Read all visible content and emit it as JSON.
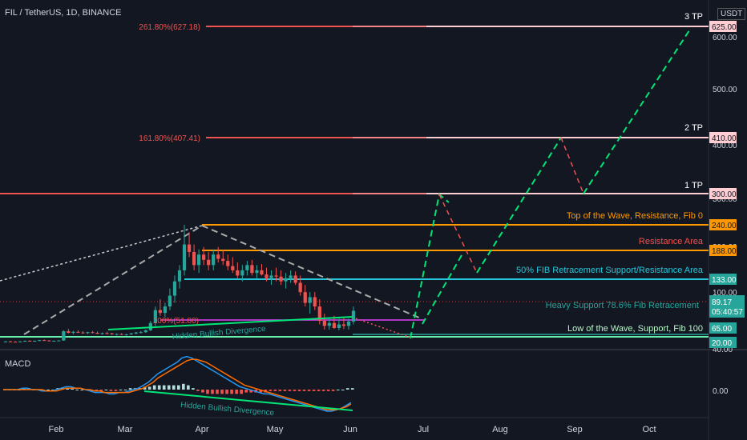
{
  "header": {
    "symbol": "FIL / TetherUS, 1D, BINANCE",
    "currency": "USDT"
  },
  "macd_label": "MACD",
  "colors": {
    "background": "#131722",
    "red": "#ef5350",
    "green": "#26a69a",
    "gridText": "#d1d4dc",
    "orange": "#ff9800",
    "teal": "#26a69a",
    "lime": "#00e676",
    "pink": "#ffcdd2",
    "magenta": "#e040fb",
    "macdBlue": "#2196f3",
    "signalOrange": "#ff6d00"
  },
  "chart_data": {
    "type": "candlestick",
    "x_labels": [
      "Feb",
      "Mar",
      "Apr",
      "May",
      "Jun",
      "Jul",
      "Aug",
      "Sep",
      "Oct"
    ],
    "y_ticks": [
      "600.00",
      "500.00",
      "400.00",
      "300.00",
      "200.00",
      "100.00",
      "40.00"
    ],
    "macd_ticks": [
      "0.00"
    ],
    "price_axis_tags": [
      {
        "value": "625.00",
        "color": "#ffcdd2",
        "textColor": "#131722"
      },
      {
        "value": "410.00",
        "color": "#ffcdd2",
        "textColor": "#131722"
      },
      {
        "value": "300.00",
        "color": "#ffcdd2",
        "textColor": "#131722"
      },
      {
        "value": "240.00",
        "color": "#ff9800",
        "textColor": "#131722"
      },
      {
        "value": "188.00",
        "color": "#ff9800",
        "textColor": "#131722"
      },
      {
        "value": "133.00",
        "color": "#26a69a",
        "textColor": "#ffffff"
      },
      {
        "value": "65.00",
        "color": "#26a69a",
        "textColor": "#ffffff"
      },
      {
        "value": "20.00",
        "color": "#26a69a",
        "textColor": "#ffffff"
      }
    ],
    "last_price": {
      "value": "89.17",
      "countdown": "05:40:57"
    },
    "fib_labels": [
      {
        "text": "261.80%(627.18)",
        "value": 627.18
      },
      {
        "text": "161.80%(407.41)",
        "value": 407.41
      },
      {
        "text": "100%(51.80)",
        "value": 51.8
      }
    ],
    "levels": [
      {
        "value": 625,
        "text": "3 TP",
        "color": "#ffcdd2"
      },
      {
        "value": 410,
        "text": "2 TP",
        "color": "#ffcdd2"
      },
      {
        "value": 300,
        "text": "1 TP",
        "color": "#ef5350"
      },
      {
        "value": 240,
        "text": "Top of the Wave, Resistance, Fib 0",
        "color": "#ff9800"
      },
      {
        "value": 188,
        "text": "Resistance Area",
        "color": "#ef5350"
      },
      {
        "value": 133,
        "text": "50% FIB Retracement Support/Resistance Area",
        "color": "#26c6da"
      },
      {
        "value": 65,
        "text": "Heavy Support 78.6% Fib Retracement",
        "color": "#26a69a"
      },
      {
        "value": 20,
        "text": "Low of the Wave, Support, Fib 100",
        "color": "#b9f6ca"
      }
    ],
    "annotations": [
      "Hidden Bullish Divergence",
      "Hidden Bullish Divergence"
    ],
    "candles": [
      [
        22,
        24,
        20,
        23
      ],
      [
        23,
        25,
        21,
        22
      ],
      [
        22,
        24,
        20,
        21
      ],
      [
        21,
        24,
        20,
        23
      ],
      [
        23,
        26,
        22,
        25
      ],
      [
        25,
        27,
        23,
        24
      ],
      [
        24,
        26,
        22,
        25
      ],
      [
        25,
        28,
        24,
        27
      ],
      [
        27,
        29,
        25,
        26
      ],
      [
        26,
        27,
        23,
        24
      ],
      [
        24,
        26,
        23,
        25
      ],
      [
        25,
        27,
        24,
        26
      ],
      [
        26,
        58,
        25,
        55
      ],
      [
        55,
        62,
        48,
        50
      ],
      [
        50,
        56,
        45,
        53
      ],
      [
        53,
        58,
        49,
        51
      ],
      [
        51,
        55,
        47,
        49
      ],
      [
        49,
        53,
        46,
        52
      ],
      [
        52,
        56,
        48,
        50
      ],
      [
        50,
        54,
        46,
        47
      ],
      [
        47,
        51,
        44,
        49
      ],
      [
        49,
        53,
        45,
        48
      ],
      [
        48,
        50,
        44,
        45
      ],
      [
        45,
        48,
        42,
        46
      ],
      [
        46,
        49,
        43,
        44
      ],
      [
        44,
        47,
        41,
        45
      ],
      [
        45,
        50,
        43,
        48
      ],
      [
        48,
        53,
        45,
        51
      ],
      [
        51,
        56,
        48,
        52
      ],
      [
        52,
        60,
        50,
        58
      ],
      [
        58,
        75,
        55,
        72
      ],
      [
        72,
        95,
        68,
        90
      ],
      [
        90,
        105,
        82,
        86
      ],
      [
        86,
        100,
        80,
        95
      ],
      [
        95,
        120,
        90,
        110
      ],
      [
        110,
        140,
        100,
        130
      ],
      [
        130,
        160,
        120,
        150
      ],
      [
        150,
        240,
        140,
        200
      ],
      [
        200,
        225,
        175,
        185
      ],
      [
        185,
        200,
        150,
        160
      ],
      [
        160,
        190,
        145,
        180
      ],
      [
        180,
        195,
        160,
        170
      ],
      [
        170,
        185,
        150,
        160
      ],
      [
        160,
        190,
        150,
        180
      ],
      [
        180,
        195,
        165,
        172
      ],
      [
        172,
        188,
        160,
        168
      ],
      [
        168,
        180,
        150,
        158
      ],
      [
        158,
        175,
        145,
        150
      ],
      [
        150,
        165,
        135,
        140
      ],
      [
        140,
        160,
        130,
        150
      ],
      [
        150,
        168,
        140,
        160
      ],
      [
        160,
        170,
        140,
        145
      ],
      [
        145,
        160,
        135,
        150
      ],
      [
        150,
        162,
        140,
        142
      ],
      [
        142,
        155,
        130,
        135
      ],
      [
        135,
        150,
        125,
        140
      ],
      [
        140,
        155,
        130,
        138
      ],
      [
        138,
        150,
        125,
        130
      ],
      [
        130,
        145,
        120,
        135
      ],
      [
        135,
        150,
        128,
        140
      ],
      [
        140,
        148,
        125,
        128
      ],
      [
        128,
        140,
        110,
        115
      ],
      [
        115,
        125,
        95,
        100
      ],
      [
        100,
        115,
        85,
        108
      ],
      [
        108,
        115,
        90,
        95
      ],
      [
        95,
        105,
        70,
        75
      ],
      [
        75,
        85,
        60,
        68
      ],
      [
        68,
        80,
        60,
        72
      ],
      [
        72,
        82,
        62,
        65
      ],
      [
        65,
        78,
        58,
        70
      ],
      [
        70,
        80,
        62,
        68
      ],
      [
        68,
        78,
        60,
        74
      ],
      [
        74,
        95,
        70,
        89
      ]
    ],
    "macd": [
      0,
      0,
      0,
      0,
      1,
      1,
      0,
      0,
      -1,
      -1,
      -1,
      0,
      1,
      2,
      2,
      1,
      1,
      0,
      -1,
      -2,
      -2,
      -2,
      -3,
      -3,
      -2,
      -2,
      -1,
      0,
      1,
      3,
      5,
      8,
      11,
      13,
      15,
      17,
      19,
      22,
      23,
      22,
      20,
      18,
      16,
      14,
      12,
      10,
      8,
      6,
      4,
      2,
      1,
      0,
      -1,
      -2,
      -3,
      -3,
      -4,
      -5,
      -6,
      -7,
      -8,
      -9,
      -10,
      -11,
      -12,
      -13,
      -14,
      -15,
      -15,
      -14,
      -13,
      -11,
      -9
    ],
    "signal": [
      0,
      0,
      0,
      0,
      0,
      0,
      0,
      0,
      0,
      -1,
      -1,
      -1,
      0,
      1,
      1,
      1,
      1,
      0,
      0,
      -1,
      -1,
      -2,
      -2,
      -2,
      -2,
      -2,
      -2,
      -1,
      0,
      1,
      3,
      5,
      8,
      10,
      12,
      14,
      16,
      18,
      20,
      21,
      21,
      20,
      19,
      17,
      15,
      13,
      11,
      9,
      7,
      5,
      3,
      2,
      1,
      0,
      -1,
      -2,
      -3,
      -4,
      -5,
      -6,
      -7,
      -8,
      -9,
      -10,
      -11,
      -12,
      -13,
      -14,
      -14,
      -14,
      -13,
      -12,
      -10
    ]
  }
}
